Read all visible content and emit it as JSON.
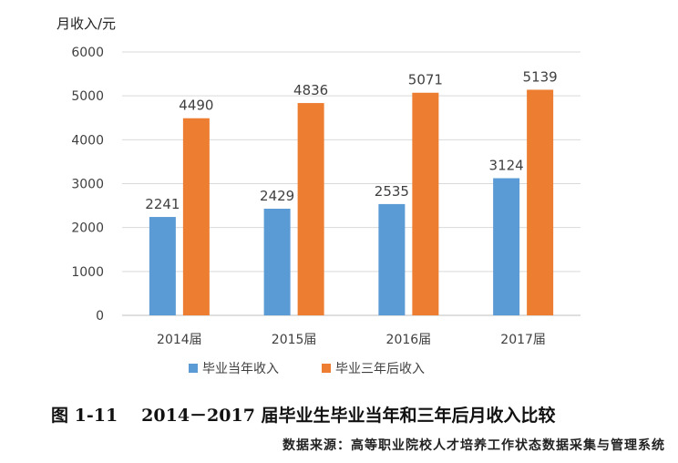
{
  "chart_data": {
    "type": "bar",
    "ylabel": "月收入/元",
    "categories": [
      "2014届",
      "2015届",
      "2016届",
      "2017届"
    ],
    "ylim": [
      0,
      6000
    ],
    "yticks": [
      0,
      1000,
      2000,
      3000,
      4000,
      5000,
      6000
    ],
    "grid": true,
    "legend_position": "bottom",
    "series": [
      {
        "name": "毕业当年收入",
        "color": "#5B9BD5",
        "values": [
          2241,
          2429,
          2535,
          3124
        ]
      },
      {
        "name": "毕业三年后收入",
        "color": "#ED7D31",
        "values": [
          4490,
          4836,
          5071,
          5139
        ]
      }
    ]
  },
  "caption": {
    "number": "图 1-11",
    "text": "2014－2017 届毕业生毕业当年和三年后月收入比较"
  },
  "source": "数据来源：高等职业院校人才培养工作状态数据采集与管理系统"
}
